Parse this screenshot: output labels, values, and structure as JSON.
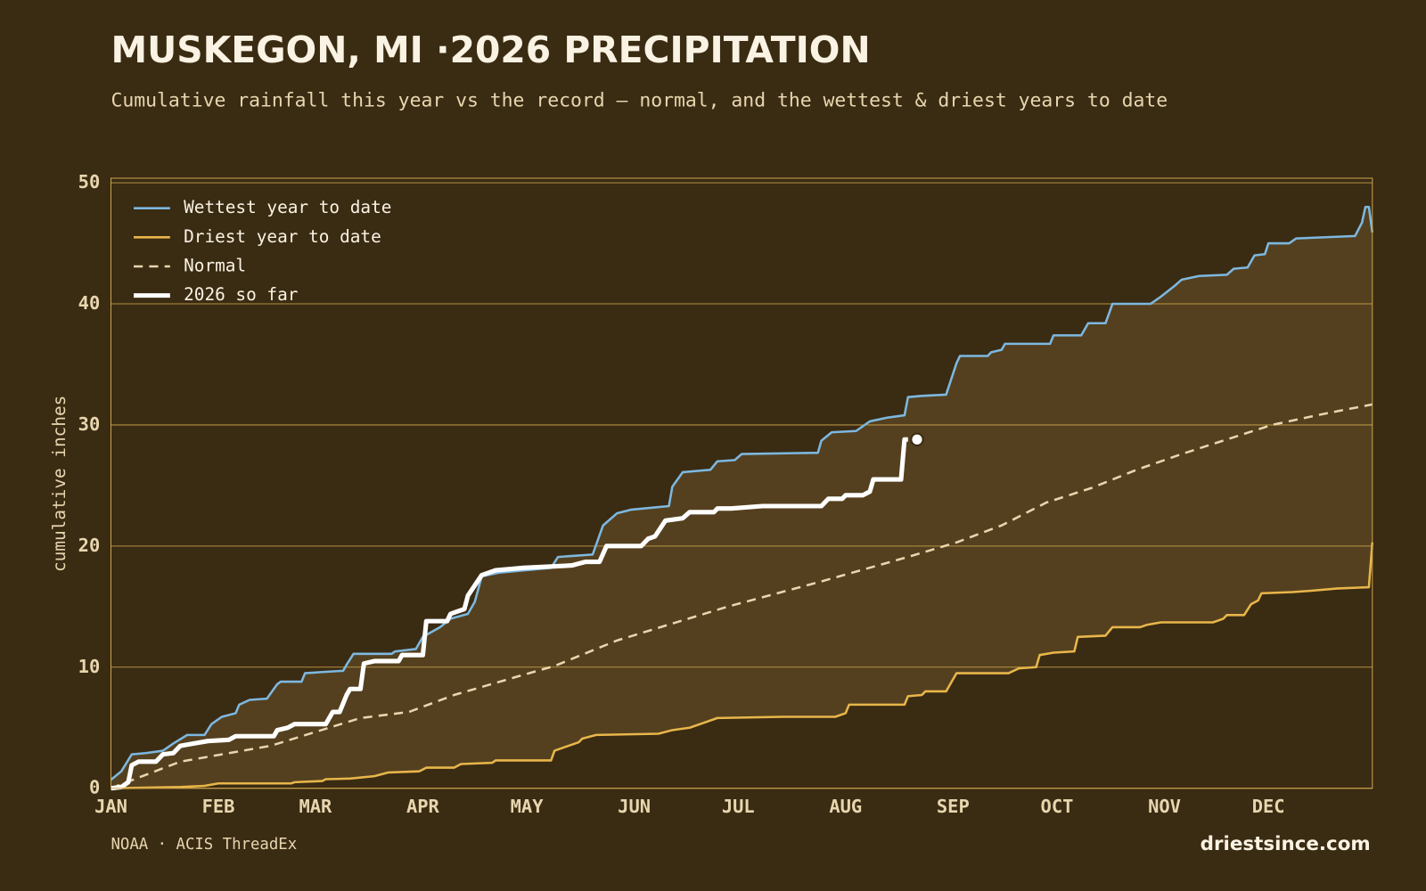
{
  "chart_data": {
    "type": "line",
    "title": "MUSKEGON, MI ·2026 PRECIPITATION",
    "subtitle": "Cumulative rainfall this year vs the record — normal, and the wettest & driest years to date",
    "ylabel": "cumulative inches",
    "source": "NOAA · ACIS ThreadEx",
    "brand": "driestsince.com",
    "xlim": [
      1,
      365
    ],
    "xticks": [
      {
        "value": 1,
        "label": "JAN"
      },
      {
        "value": 32,
        "label": "FEB"
      },
      {
        "value": 60,
        "label": "MAR"
      },
      {
        "value": 91,
        "label": "APR"
      },
      {
        "value": 121,
        "label": "MAY"
      },
      {
        "value": 152,
        "label": "JUN"
      },
      {
        "value": 182,
        "label": "JUL"
      },
      {
        "value": 213,
        "label": "AUG"
      },
      {
        "value": 244,
        "label": "SEP"
      },
      {
        "value": 274,
        "label": "OCT"
      },
      {
        "value": 305,
        "label": "NOV"
      },
      {
        "value": 335,
        "label": "DEC"
      }
    ],
    "ylim": [
      0,
      50
    ],
    "yticks": [
      0,
      10,
      20,
      30,
      40,
      50
    ],
    "grid": true,
    "legend": "top-left",
    "band_color": "#54401f",
    "series": [
      {
        "name": "Wettest year to date",
        "color": "#7db8e0",
        "x": [
          1,
          4,
          7,
          11,
          16,
          19,
          23,
          28,
          30,
          33,
          37,
          38,
          41,
          46,
          49,
          50,
          56,
          57,
          62,
          68,
          69,
          71,
          82,
          83,
          89,
          91,
          96,
          99,
          104,
          106,
          108,
          113,
          128,
          130,
          140,
          143,
          147,
          151,
          162,
          163,
          166,
          174,
          176,
          181,
          183,
          205,
          206,
          209,
          216,
          220,
          225,
          230,
          231,
          235,
          242,
          245,
          246,
          254,
          255,
          258,
          259,
          272,
          273,
          281,
          283,
          288,
          290,
          301,
          304,
          308,
          310,
          315,
          323,
          325,
          329,
          331,
          334,
          335,
          341,
          343,
          360,
          362,
          363,
          364,
          365
        ],
        "values": [
          0.7,
          1.4,
          2.8,
          2.9,
          3.1,
          3.7,
          4.4,
          4.4,
          5.3,
          5.9,
          6.2,
          6.9,
          7.3,
          7.4,
          8.6,
          8.8,
          8.8,
          9.5,
          9.6,
          9.7,
          10.2,
          11.1,
          11.1,
          11.3,
          11.5,
          12.5,
          13.3,
          14.0,
          14.4,
          15.4,
          17.5,
          17.8,
          18.2,
          19.1,
          19.3,
          21.7,
          22.7,
          23.0,
          23.3,
          24.9,
          26.1,
          26.3,
          27.0,
          27.1,
          27.6,
          27.7,
          28.7,
          29.4,
          29.5,
          30.3,
          30.6,
          30.8,
          32.3,
          32.4,
          32.5,
          35.1,
          35.7,
          35.7,
          36.0,
          36.2,
          36.7,
          36.7,
          37.4,
          37.4,
          38.4,
          38.4,
          40.0,
          40.0,
          40.6,
          41.5,
          42.0,
          42.3,
          42.4,
          42.9,
          43.0,
          44.0,
          44.1,
          45.0,
          45.0,
          45.4,
          45.6,
          46.7,
          48.0,
          48.0,
          45.9
        ]
      },
      {
        "name": "Driest year to date",
        "color": "#e8b64a",
        "x": [
          1,
          21,
          28,
          32,
          53,
          54,
          62,
          63,
          70,
          77,
          81,
          90,
          92,
          100,
          102,
          111,
          112,
          128,
          129,
          132,
          136,
          137,
          141,
          159,
          163,
          168,
          171,
          176,
          195,
          210,
          213,
          214,
          230,
          231,
          235,
          236,
          242,
          245,
          260,
          263,
          268,
          269,
          273,
          279,
          280,
          288,
          290,
          298,
          300,
          304,
          319,
          322,
          323,
          328,
          330,
          332,
          333,
          342,
          347,
          355,
          364,
          365
        ],
        "values": [
          0,
          0.1,
          0.2,
          0.4,
          0.4,
          0.5,
          0.6,
          0.75,
          0.8,
          1.0,
          1.3,
          1.4,
          1.7,
          1.7,
          2.0,
          2.1,
          2.3,
          2.3,
          3.1,
          3.4,
          3.8,
          4.1,
          4.4,
          4.5,
          4.8,
          5.0,
          5.3,
          5.8,
          5.9,
          5.9,
          6.2,
          6.9,
          6.9,
          7.6,
          7.7,
          8.0,
          8.0,
          9.5,
          9.5,
          9.9,
          10.0,
          11.0,
          11.2,
          11.3,
          12.5,
          12.6,
          13.3,
          13.3,
          13.5,
          13.7,
          13.7,
          14.0,
          14.3,
          14.3,
          15.2,
          15.5,
          16.1,
          16.2,
          16.3,
          16.5,
          16.6,
          20.3
        ]
      },
      {
        "name": "Normal",
        "color": "#e8d6ae",
        "style": "dashed",
        "x": [
          1,
          21,
          47,
          73,
          87,
          100,
          118,
          129,
          147,
          179,
          205,
          231,
          245,
          258,
          271,
          284,
          297,
          310,
          323,
          336,
          349,
          365
        ],
        "values": [
          0,
          2.2,
          3.5,
          5.8,
          6.3,
          7.7,
          9.2,
          10.1,
          12.2,
          15.0,
          17.0,
          19.1,
          20.3,
          21.7,
          23.6,
          24.8,
          26.3,
          27.6,
          28.8,
          30.0,
          30.8,
          31.7
        ]
      },
      {
        "name": "2026 so far",
        "color": "#ffffff",
        "style": "bold",
        "x": [
          1,
          4,
          6,
          7,
          9,
          14,
          16,
          19,
          21,
          25,
          29,
          35,
          37,
          48,
          49,
          52,
          54,
          63,
          65,
          67,
          69,
          70,
          73,
          74,
          77,
          84,
          85,
          91,
          92,
          98,
          99,
          103,
          104,
          108,
          112,
          120,
          134,
          138,
          142,
          144,
          154,
          156,
          158,
          161,
          166,
          168,
          175,
          176,
          180,
          189,
          206,
          208,
          212,
          213,
          218,
          220,
          221,
          229,
          230,
          231
        ],
        "values": [
          0,
          0.1,
          0.5,
          1.9,
          2.2,
          2.2,
          2.8,
          2.9,
          3.5,
          3.7,
          3.9,
          4.0,
          4.3,
          4.3,
          4.8,
          5.0,
          5.3,
          5.3,
          6.3,
          6.3,
          7.7,
          8.2,
          8.2,
          10.3,
          10.5,
          10.5,
          11.0,
          11.0,
          13.8,
          13.8,
          14.4,
          14.8,
          15.9,
          17.6,
          18.0,
          18.2,
          18.4,
          18.7,
          18.7,
          20.0,
          20.0,
          20.6,
          20.8,
          22.1,
          22.3,
          22.8,
          22.8,
          23.1,
          23.1,
          23.3,
          23.3,
          23.9,
          23.9,
          24.2,
          24.2,
          24.5,
          25.5,
          25.5,
          28.8,
          28.8
        ]
      }
    ]
  }
}
